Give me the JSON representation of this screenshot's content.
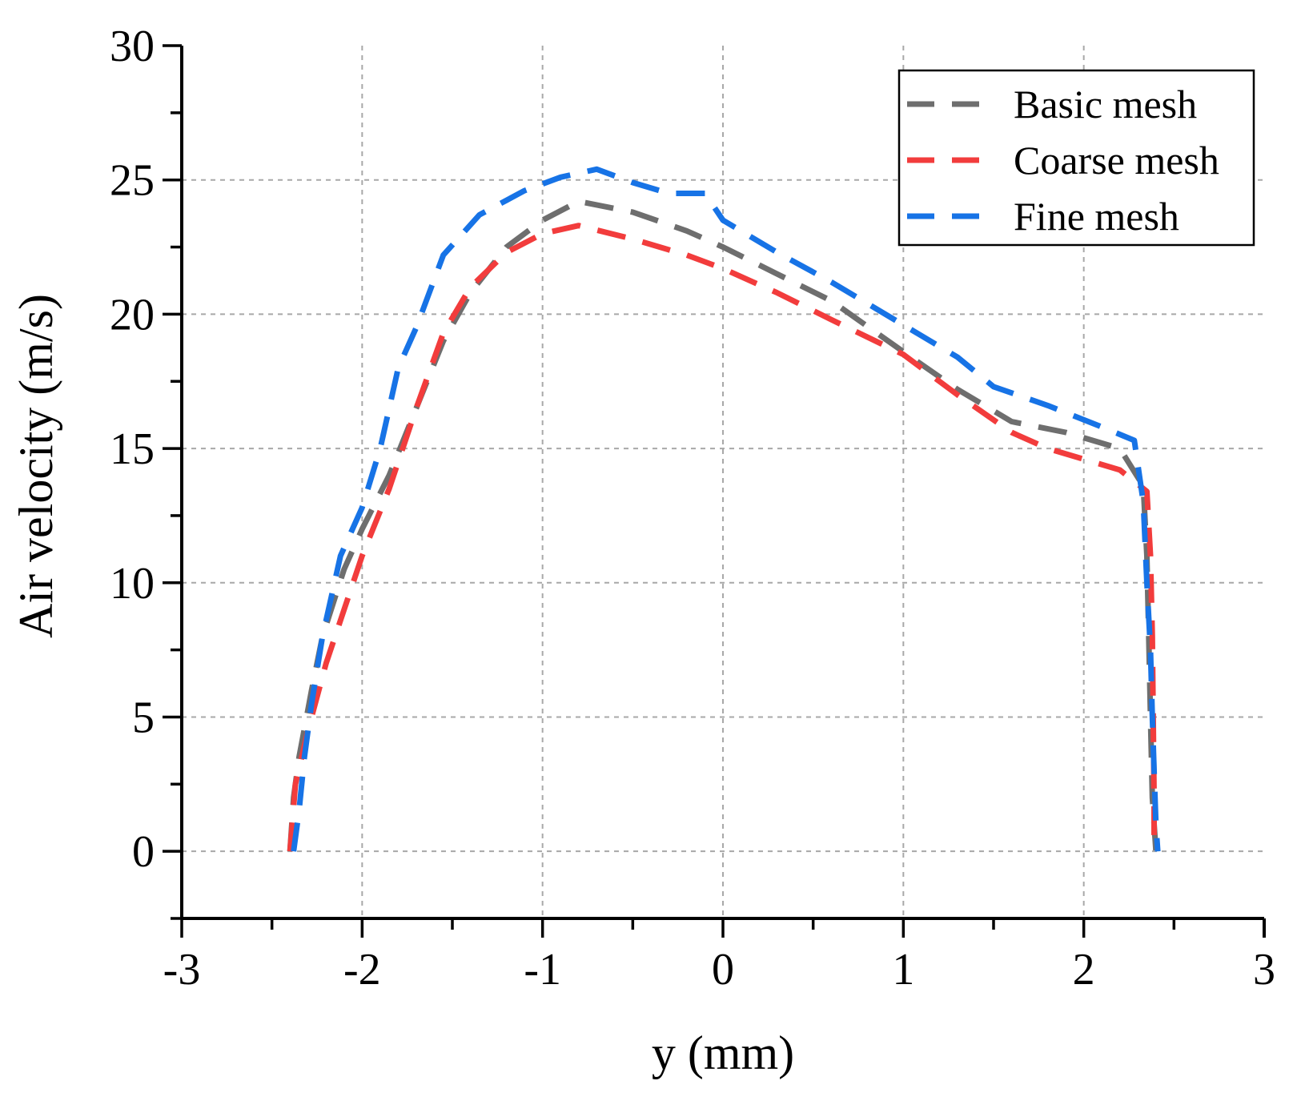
{
  "chart_data": {
    "type": "line",
    "title": "",
    "xlabel": "y (mm)",
    "ylabel": "Air velocity (m/s)",
    "xlim": [
      -3,
      3
    ],
    "ylim": [
      -2.5,
      30
    ],
    "xticks": [
      -3,
      -2,
      -1,
      0,
      1,
      2,
      3
    ],
    "yticks": [
      0,
      5,
      10,
      15,
      20,
      25,
      30
    ],
    "x_tick_labels": [
      "-3",
      "-2",
      "-1",
      "0",
      "1",
      "2",
      "3"
    ],
    "y_tick_labels": [
      "0",
      "5",
      "10",
      "15",
      "20",
      "25",
      "30"
    ],
    "grid": true,
    "legend_position": "top-right",
    "series": [
      {
        "name": "Basic mesh",
        "color": "#6e6e6e",
        "points": [
          [
            -2.4,
            0.0
          ],
          [
            -2.38,
            2.0
          ],
          [
            -2.35,
            3.5
          ],
          [
            -2.28,
            6.0
          ],
          [
            -2.22,
            8.0
          ],
          [
            -2.1,
            10.5
          ],
          [
            -2.0,
            12.0
          ],
          [
            -1.85,
            14.0
          ],
          [
            -1.7,
            16.5
          ],
          [
            -1.55,
            19.0
          ],
          [
            -1.4,
            20.8
          ],
          [
            -1.2,
            22.5
          ],
          [
            -1.0,
            23.5
          ],
          [
            -0.8,
            24.2
          ],
          [
            -0.5,
            23.8
          ],
          [
            -0.2,
            23.1
          ],
          [
            0.0,
            22.5
          ],
          [
            0.3,
            21.5
          ],
          [
            0.6,
            20.5
          ],
          [
            1.0,
            18.6
          ],
          [
            1.3,
            17.2
          ],
          [
            1.6,
            16.0
          ],
          [
            1.9,
            15.6
          ],
          [
            2.2,
            15.0
          ],
          [
            2.33,
            13.6
          ],
          [
            2.35,
            11.0
          ],
          [
            2.36,
            8.0
          ],
          [
            2.37,
            5.0
          ],
          [
            2.38,
            2.0
          ],
          [
            2.4,
            0.0
          ]
        ]
      },
      {
        "name": "Coarse mesh",
        "color": "#f23c3c",
        "points": [
          [
            -2.4,
            0.0
          ],
          [
            -2.37,
            2.5
          ],
          [
            -2.3,
            4.5
          ],
          [
            -2.2,
            7.0
          ],
          [
            -2.1,
            9.0
          ],
          [
            -2.0,
            11.0
          ],
          [
            -1.85,
            13.5
          ],
          [
            -1.7,
            16.5
          ],
          [
            -1.55,
            19.3
          ],
          [
            -1.4,
            21.0
          ],
          [
            -1.2,
            22.3
          ],
          [
            -1.0,
            23.0
          ],
          [
            -0.8,
            23.3
          ],
          [
            -0.5,
            22.8
          ],
          [
            -0.2,
            22.2
          ],
          [
            0.0,
            21.7
          ],
          [
            0.3,
            20.8
          ],
          [
            0.6,
            19.8
          ],
          [
            1.0,
            18.5
          ],
          [
            1.3,
            17.0
          ],
          [
            1.6,
            15.6
          ],
          [
            1.8,
            15.0
          ],
          [
            2.0,
            14.6
          ],
          [
            2.2,
            14.2
          ],
          [
            2.35,
            13.4
          ],
          [
            2.37,
            11.0
          ],
          [
            2.38,
            8.0
          ],
          [
            2.385,
            5.0
          ],
          [
            2.39,
            2.0
          ],
          [
            2.39,
            0.0
          ]
        ]
      },
      {
        "name": "Fine mesh",
        "color": "#1773e6",
        "points": [
          [
            -2.38,
            0.0
          ],
          [
            -2.35,
            1.5
          ],
          [
            -2.32,
            3.5
          ],
          [
            -2.28,
            5.5
          ],
          [
            -2.22,
            8.0
          ],
          [
            -2.12,
            11.0
          ],
          [
            -2.0,
            12.8
          ],
          [
            -1.9,
            15.0
          ],
          [
            -1.8,
            18.0
          ],
          [
            -1.7,
            19.5
          ],
          [
            -1.55,
            22.2
          ],
          [
            -1.35,
            23.7
          ],
          [
            -1.1,
            24.6
          ],
          [
            -0.9,
            25.1
          ],
          [
            -0.7,
            25.4
          ],
          [
            -0.5,
            24.9
          ],
          [
            -0.3,
            24.5
          ],
          [
            -0.1,
            24.5
          ],
          [
            0.0,
            23.5
          ],
          [
            0.3,
            22.3
          ],
          [
            0.6,
            21.2
          ],
          [
            1.0,
            19.6
          ],
          [
            1.3,
            18.4
          ],
          [
            1.5,
            17.3
          ],
          [
            1.8,
            16.6
          ],
          [
            2.1,
            15.8
          ],
          [
            2.28,
            15.3
          ],
          [
            2.33,
            13.0
          ],
          [
            2.35,
            10.0
          ],
          [
            2.37,
            7.5
          ],
          [
            2.38,
            5.0
          ],
          [
            2.39,
            3.0
          ],
          [
            2.4,
            1.0
          ],
          [
            2.41,
            0.0
          ]
        ]
      }
    ]
  }
}
